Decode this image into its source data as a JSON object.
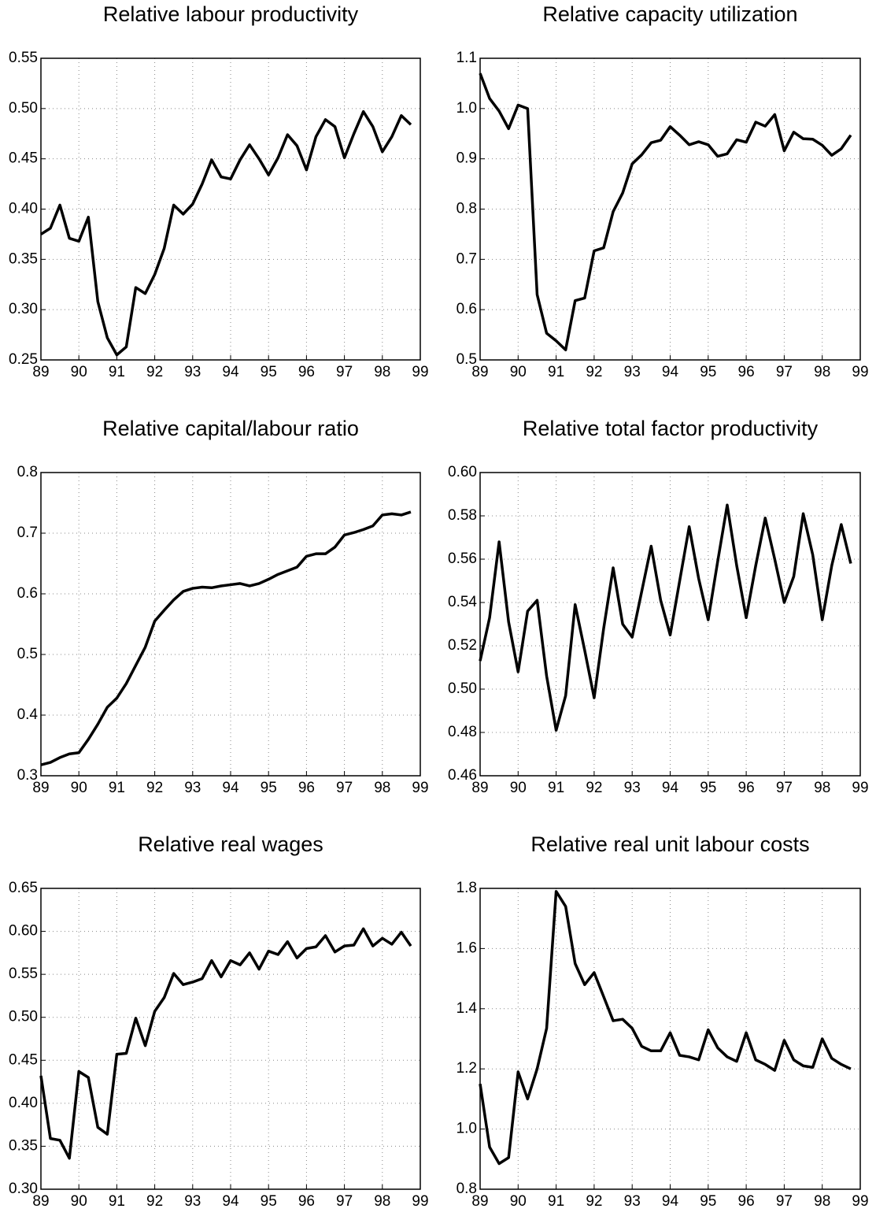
{
  "chart_data": [
    {
      "type": "line",
      "title": "Relative labour productivity",
      "color": "#000000",
      "grid": true,
      "x": [
        89,
        89.25,
        89.5,
        89.75,
        90,
        90.25,
        90.5,
        90.75,
        91,
        91.25,
        91.5,
        91.75,
        92,
        92.25,
        92.5,
        92.75,
        93,
        93.25,
        93.5,
        93.75,
        94,
        94.25,
        94.5,
        94.75,
        95,
        95.25,
        95.5,
        95.75,
        96,
        96.25,
        96.5,
        96.75,
        97,
        97.25,
        97.5,
        97.75,
        98,
        98.25,
        98.5,
        98.75
      ],
      "values": [
        0.375,
        0.381,
        0.404,
        0.371,
        0.368,
        0.392,
        0.308,
        0.272,
        0.255,
        0.263,
        0.322,
        0.316,
        0.335,
        0.361,
        0.404,
        0.395,
        0.405,
        0.425,
        0.449,
        0.432,
        0.43,
        0.449,
        0.464,
        0.45,
        0.434,
        0.451,
        0.474,
        0.463,
        0.439,
        0.472,
        0.489,
        0.482,
        0.451,
        0.475,
        0.497,
        0.482,
        0.457,
        0.472,
        0.493,
        0.484
      ],
      "xlim": [
        89,
        99
      ],
      "xticks": [
        89,
        90,
        91,
        92,
        93,
        94,
        95,
        96,
        97,
        98,
        99
      ],
      "ylim": [
        0.25,
        0.55
      ],
      "yticks": [
        0.25,
        {
          "value": 0.3,
          "label": "0.30"
        },
        0.35,
        {
          "value": 0.4,
          "label": "0.40"
        },
        0.45,
        {
          "value": 0.5,
          "label": "0.50"
        },
        0.55
      ]
    },
    {
      "type": "line",
      "title": "Relative capacity utilization",
      "color": "#000000",
      "grid": true,
      "x": [
        89,
        89.25,
        89.5,
        89.75,
        90,
        90.25,
        90.5,
        90.75,
        91,
        91.25,
        91.5,
        91.75,
        92,
        92.25,
        92.5,
        92.75,
        93,
        93.25,
        93.5,
        93.75,
        94,
        94.25,
        94.5,
        94.75,
        95,
        95.25,
        95.5,
        95.75,
        96,
        96.25,
        96.5,
        96.75,
        97,
        97.25,
        97.5,
        97.75,
        98,
        98.25,
        98.5,
        98.75
      ],
      "values": [
        1.07,
        1.02,
        0.995,
        0.96,
        1.007,
        1.0,
        0.63,
        0.553,
        0.538,
        0.52,
        0.618,
        0.623,
        0.717,
        0.723,
        0.795,
        0.832,
        0.89,
        0.908,
        0.932,
        0.937,
        0.964,
        0.947,
        0.928,
        0.934,
        0.928,
        0.905,
        0.91,
        0.938,
        0.933,
        0.973,
        0.965,
        0.988,
        0.916,
        0.953,
        0.94,
        0.939,
        0.927,
        0.907,
        0.92,
        0.947
      ],
      "xlim": [
        89,
        99
      ],
      "xticks": [
        89,
        90,
        91,
        92,
        93,
        94,
        95,
        96,
        97,
        98,
        99
      ],
      "ylim": [
        0.5,
        1.1
      ],
      "yticks": [
        0.5,
        0.6,
        0.7,
        0.8,
        0.9,
        {
          "value": 1,
          "label": "1.0"
        },
        1.1
      ]
    },
    {
      "type": "line",
      "title": "Relative capital/labour ratio",
      "color": "#000000",
      "grid": true,
      "x": [
        89,
        89.25,
        89.5,
        89.75,
        90,
        90.25,
        90.5,
        90.75,
        91,
        91.25,
        91.5,
        91.75,
        92,
        92.25,
        92.5,
        92.75,
        93,
        93.25,
        93.5,
        93.75,
        94,
        94.25,
        94.5,
        94.75,
        95,
        95.25,
        95.5,
        95.75,
        96,
        96.25,
        96.5,
        96.75,
        97,
        97.25,
        97.5,
        97.75,
        98,
        98.25,
        98.5,
        98.75
      ],
      "values": [
        0.318,
        0.322,
        0.33,
        0.336,
        0.338,
        0.36,
        0.385,
        0.413,
        0.428,
        0.452,
        0.482,
        0.512,
        0.555,
        0.573,
        0.59,
        0.604,
        0.609,
        0.611,
        0.61,
        0.613,
        0.615,
        0.617,
        0.613,
        0.617,
        0.624,
        0.632,
        0.638,
        0.644,
        0.662,
        0.666,
        0.666,
        0.677,
        0.697,
        0.701,
        0.706,
        0.712,
        0.73,
        0.732,
        0.73,
        0.735
      ],
      "xlim": [
        89,
        99
      ],
      "xticks": [
        89,
        90,
        91,
        92,
        93,
        94,
        95,
        96,
        97,
        98,
        99
      ],
      "ylim": [
        0.3,
        0.8
      ],
      "yticks": [
        0.3,
        0.4,
        0.5,
        0.6,
        0.7,
        0.8
      ]
    },
    {
      "type": "line",
      "title": "Relative total factor productivity",
      "color": "#000000",
      "grid": true,
      "x": [
        89,
        89.25,
        89.5,
        89.75,
        90,
        90.25,
        90.5,
        90.75,
        91,
        91.25,
        91.5,
        91.75,
        92,
        92.25,
        92.5,
        92.75,
        93,
        93.25,
        93.5,
        93.75,
        94,
        94.25,
        94.5,
        94.75,
        95,
        95.25,
        95.5,
        95.75,
        96,
        96.25,
        96.5,
        96.75,
        97,
        97.25,
        97.5,
        97.75,
        98,
        98.25,
        98.5,
        98.75
      ],
      "values": [
        0.513,
        0.533,
        0.568,
        0.531,
        0.508,
        0.536,
        0.541,
        0.506,
        0.481,
        0.497,
        0.539,
        0.518,
        0.496,
        0.528,
        0.556,
        0.53,
        0.524,
        0.545,
        0.566,
        0.541,
        0.525,
        0.55,
        0.575,
        0.551,
        0.532,
        0.559,
        0.585,
        0.557,
        0.533,
        0.557,
        0.579,
        0.56,
        0.54,
        0.552,
        0.581,
        0.562,
        0.532,
        0.557,
        0.576,
        0.558
      ],
      "xlim": [
        89,
        99
      ],
      "xticks": [
        89,
        90,
        91,
        92,
        93,
        94,
        95,
        96,
        97,
        98,
        99
      ],
      "ylim": [
        0.46,
        0.6
      ],
      "yticks": [
        0.46,
        0.48,
        {
          "value": 0.5,
          "label": "0.50"
        },
        0.52,
        0.54,
        0.56,
        0.58,
        {
          "value": 0.6,
          "label": "0.60"
        }
      ]
    },
    {
      "type": "line",
      "title": "Relative real wages",
      "color": "#000000",
      "grid": true,
      "x": [
        89,
        89.25,
        89.5,
        89.75,
        90,
        90.25,
        90.5,
        90.75,
        91,
        91.25,
        91.5,
        91.75,
        92,
        92.25,
        92.5,
        92.75,
        93,
        93.25,
        93.5,
        93.75,
        94,
        94.25,
        94.5,
        94.75,
        95,
        95.25,
        95.5,
        95.75,
        96,
        96.25,
        96.5,
        96.75,
        97,
        97.25,
        97.5,
        97.75,
        98,
        98.25,
        98.5,
        98.75
      ],
      "values": [
        0.432,
        0.359,
        0.357,
        0.336,
        0.437,
        0.43,
        0.372,
        0.364,
        0.457,
        0.458,
        0.499,
        0.467,
        0.507,
        0.523,
        0.551,
        0.538,
        0.541,
        0.545,
        0.566,
        0.547,
        0.566,
        0.561,
        0.575,
        0.556,
        0.577,
        0.573,
        0.588,
        0.569,
        0.58,
        0.582,
        0.595,
        0.576,
        0.583,
        0.584,
        0.603,
        0.583,
        0.592,
        0.585,
        0.599,
        0.583
      ],
      "xlim": [
        89,
        99
      ],
      "xticks": [
        89,
        90,
        91,
        92,
        93,
        94,
        95,
        96,
        97,
        98,
        99
      ],
      "ylim": [
        0.3,
        0.65
      ],
      "yticks": [
        {
          "value": 0.3,
          "label": "0.30"
        },
        0.35,
        {
          "value": 0.4,
          "label": "0.40"
        },
        0.45,
        {
          "value": 0.5,
          "label": "0.50"
        },
        0.55,
        {
          "value": 0.6,
          "label": "0.60"
        },
        0.65
      ]
    },
    {
      "type": "line",
      "title": "Relative real unit labour costs",
      "color": "#000000",
      "grid": true,
      "x": [
        89,
        89.25,
        89.5,
        89.75,
        90,
        90.25,
        90.5,
        90.75,
        91,
        91.25,
        91.5,
        91.75,
        92,
        92.25,
        92.5,
        92.75,
        93,
        93.25,
        93.5,
        93.75,
        94,
        94.25,
        94.5,
        94.75,
        95,
        95.25,
        95.5,
        95.75,
        96,
        96.25,
        96.5,
        96.75,
        97,
        97.25,
        97.5,
        97.75,
        98,
        98.25,
        98.5,
        98.75
      ],
      "values": [
        1.15,
        0.94,
        0.885,
        0.905,
        1.19,
        1.1,
        1.2,
        1.335,
        1.79,
        1.74,
        1.55,
        1.48,
        1.52,
        1.44,
        1.36,
        1.365,
        1.335,
        1.275,
        1.26,
        1.26,
        1.32,
        1.245,
        1.24,
        1.23,
        1.33,
        1.27,
        1.24,
        1.225,
        1.32,
        1.23,
        1.215,
        1.195,
        1.295,
        1.23,
        1.21,
        1.205,
        1.3,
        1.235,
        1.215,
        1.2
      ],
      "xlim": [
        89,
        99
      ],
      "xticks": [
        89,
        90,
        91,
        92,
        93,
        94,
        95,
        96,
        97,
        98,
        99
      ],
      "ylim": [
        0.8,
        1.8
      ],
      "yticks": [
        0.8,
        {
          "value": 1,
          "label": "1.0"
        },
        1.2,
        1.4,
        1.6,
        1.8
      ]
    }
  ]
}
